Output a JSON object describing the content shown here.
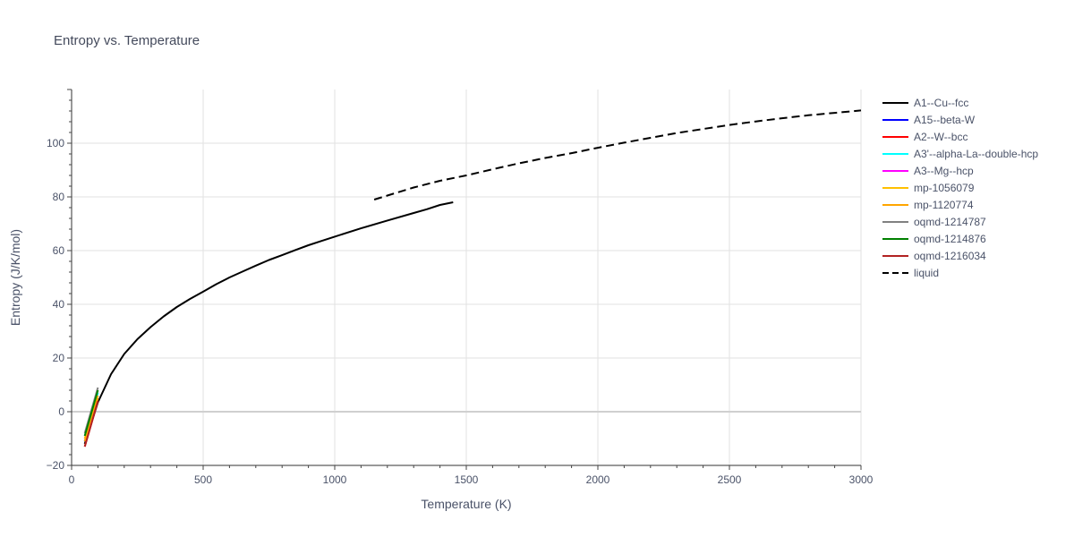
{
  "chart_data": {
    "type": "line",
    "title": "Entropy vs. Temperature",
    "xlabel": "Temperature (K)",
    "ylabel": "Entropy (J/K/mol)",
    "xlim": [
      0,
      3000
    ],
    "ylim": [
      -20,
      120
    ],
    "x_ticks": [
      0,
      500,
      1000,
      1500,
      2000,
      2500,
      3000
    ],
    "y_ticks": [
      -20,
      0,
      20,
      40,
      60,
      80,
      100
    ],
    "x_tick_labels": [
      "0",
      "500",
      "1000",
      "1500",
      "2000",
      "2500",
      "3000"
    ],
    "y_tick_labels": [
      "−20",
      "0",
      "20",
      "40",
      "60",
      "80",
      "100"
    ],
    "grid": true,
    "legend_position": "right",
    "series": [
      {
        "name": "A1--Cu--fcc",
        "color": "#000000",
        "dash": "solid",
        "x": [
          50,
          100,
          150,
          200,
          250,
          300,
          350,
          400,
          450,
          500,
          550,
          600,
          650,
          700,
          750,
          800,
          850,
          900,
          950,
          1000,
          1100,
          1200,
          1300,
          1350,
          1400,
          1450
        ],
        "y": [
          -12,
          3.5,
          14,
          21.5,
          27,
          31.5,
          35.5,
          39,
          42,
          44.7,
          47.5,
          50,
          52.2,
          54.4,
          56.5,
          58.3,
          60.2,
          62,
          63.6,
          65.2,
          68.3,
          71.2,
          74,
          75.4,
          77,
          78
        ]
      },
      {
        "name": "A15--beta-W",
        "color": "#0000ff",
        "dash": "solid",
        "x": [
          50,
          100
        ],
        "y": [
          -11,
          5
        ]
      },
      {
        "name": "A2--W--bcc",
        "color": "#ff0000",
        "dash": "solid",
        "x": [
          50,
          100
        ],
        "y": [
          -13,
          4
        ]
      },
      {
        "name": "A3'--alpha-La--double-hcp",
        "color": "#00ffff",
        "dash": "solid",
        "x": [
          50,
          100
        ],
        "y": [
          -9,
          7
        ]
      },
      {
        "name": "A3--Mg--hcp",
        "color": "#ff00ff",
        "dash": "solid",
        "x": [
          50,
          100
        ],
        "y": [
          -10,
          6
        ]
      },
      {
        "name": "mp-1056079",
        "color": "#ffc000",
        "dash": "solid",
        "x": [
          50,
          100
        ],
        "y": [
          -10,
          6
        ]
      },
      {
        "name": "mp-1120774",
        "color": "#ffa500",
        "dash": "solid",
        "x": [
          50,
          100
        ],
        "y": [
          -11,
          5
        ]
      },
      {
        "name": "oqmd-1214787",
        "color": "#808080",
        "dash": "solid",
        "x": [
          50,
          100
        ],
        "y": [
          -8,
          9
        ]
      },
      {
        "name": "oqmd-1214876",
        "color": "#008000",
        "dash": "solid",
        "x": [
          50,
          100
        ],
        "y": [
          -9,
          8
        ]
      },
      {
        "name": "oqmd-1216034",
        "color": "#b22222",
        "dash": "solid",
        "x": [
          50,
          100
        ],
        "y": [
          -13,
          4
        ]
      },
      {
        "name": "liquid",
        "color": "#000000",
        "dash": "dash",
        "x": [
          1150,
          1200,
          1300,
          1400,
          1500,
          1600,
          1700,
          1800,
          1900,
          2000,
          2100,
          2200,
          2300,
          2400,
          2500,
          2600,
          2700,
          2800,
          2900,
          3000
        ],
        "y": [
          79,
          80.5,
          83.5,
          86,
          88,
          90.3,
          92.5,
          94.5,
          96.3,
          98.3,
          100.2,
          102,
          103.8,
          105.3,
          106.8,
          108.1,
          109.3,
          110.4,
          111.3,
          112.2
        ]
      }
    ]
  }
}
